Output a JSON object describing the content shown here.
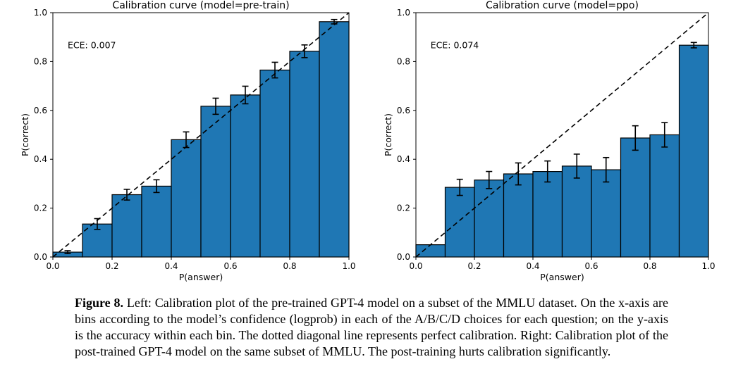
{
  "figure": {
    "caption_label": "Figure 8.",
    "caption_text": " Left: Calibration plot of the pre-trained GPT-4 model on a subset of the MMLU dataset. On the x-axis are bins according to the model’s confidence (logprob) in each of the A/B/C/D choices for each question; on the y-axis is the accuracy within each bin. The dotted diagonal line represents perfect calibration. Right: Calibration plot of the post-trained GPT-4 model on the same subset of MMLU. The post-training hurts calibration significantly."
  },
  "chart_data": [
    {
      "type": "bar",
      "title": "Calibration curve (model=pre-train)",
      "xlabel": "P(answer)",
      "ylabel": "P(correct)",
      "annotation": "ECE: 0.007",
      "xlim": [
        0.0,
        1.0
      ],
      "ylim": [
        0.0,
        1.0
      ],
      "xticks": [
        "0.0",
        "0.2",
        "0.4",
        "0.6",
        "0.8",
        "1.0"
      ],
      "yticks": [
        "0.0",
        "0.2",
        "0.4",
        "0.6",
        "0.8",
        "1.0"
      ],
      "bin_edges": [
        0.0,
        0.1,
        0.2,
        0.3,
        0.4,
        0.5,
        0.6,
        0.7,
        0.8,
        0.9,
        1.0
      ],
      "values": [
        0.02,
        0.135,
        0.255,
        0.29,
        0.48,
        0.617,
        0.663,
        0.765,
        0.842,
        0.963
      ],
      "errors": [
        0.006,
        0.022,
        0.022,
        0.026,
        0.032,
        0.033,
        0.036,
        0.032,
        0.026,
        0.009
      ],
      "diagonal": true,
      "grid": false,
      "bar_color": "#1f77b4",
      "bar_edge_color": "#000000",
      "errorbar_color": "#000000",
      "diagonal_color": "#000000"
    },
    {
      "type": "bar",
      "title": "Calibration curve (model=ppo)",
      "xlabel": "P(answer)",
      "ylabel": "P(correct)",
      "annotation": "ECE: 0.074",
      "xlim": [
        0.0,
        1.0
      ],
      "ylim": [
        0.0,
        1.0
      ],
      "xticks": [
        "0.0",
        "0.2",
        "0.4",
        "0.6",
        "0.8",
        "1.0"
      ],
      "yticks": [
        "0.0",
        "0.2",
        "0.4",
        "0.6",
        "0.8",
        "1.0"
      ],
      "bin_edges": [
        0.0,
        0.1,
        0.2,
        0.3,
        0.4,
        0.5,
        0.6,
        0.7,
        0.8,
        0.9,
        1.0
      ],
      "values": [
        0.05,
        0.285,
        0.315,
        0.34,
        0.35,
        0.372,
        0.357,
        0.487,
        0.5,
        0.867
      ],
      "errors": [
        0,
        0.033,
        0.035,
        0.045,
        0.043,
        0.049,
        0.05,
        0.05,
        0.05,
        0.011
      ],
      "diagonal": true,
      "grid": false,
      "bar_color": "#1f77b4",
      "bar_edge_color": "#000000",
      "errorbar_color": "#000000",
      "diagonal_color": "#000000"
    }
  ]
}
